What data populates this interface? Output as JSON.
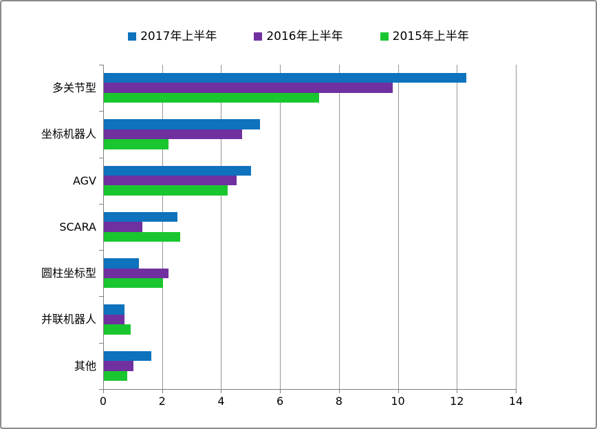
{
  "chart_data": {
    "type": "bar",
    "orientation": "horizontal",
    "title": "",
    "categories": [
      "多关节型",
      "坐标机器人",
      "AGV",
      "SCARA",
      "圆柱坐标型",
      "并联机器人",
      "其他"
    ],
    "series": [
      {
        "name": "2017年上半年",
        "color": "#0e72bd",
        "values": [
          12.3,
          5.3,
          5.0,
          2.5,
          1.2,
          0.7,
          1.6
        ]
      },
      {
        "name": "2016年上半年",
        "color": "#7030a0",
        "values": [
          9.8,
          4.7,
          4.5,
          1.3,
          2.2,
          0.7,
          1.0
        ]
      },
      {
        "name": "2015年上半年",
        "color": "#1ac62f",
        "values": [
          7.3,
          2.2,
          4.2,
          2.6,
          2.0,
          0.9,
          0.8
        ]
      }
    ],
    "xlabel": "",
    "ylabel": "",
    "xlim": [
      0,
      14
    ],
    "xticks": [
      0,
      2,
      4,
      6,
      8,
      10,
      12,
      14
    ],
    "grid": true,
    "legend_position": "top"
  },
  "colors": {
    "frame_border": "#8a8a8a",
    "gridline": "#949494",
    "axis": "#7f7f7f",
    "text": "#000000"
  }
}
